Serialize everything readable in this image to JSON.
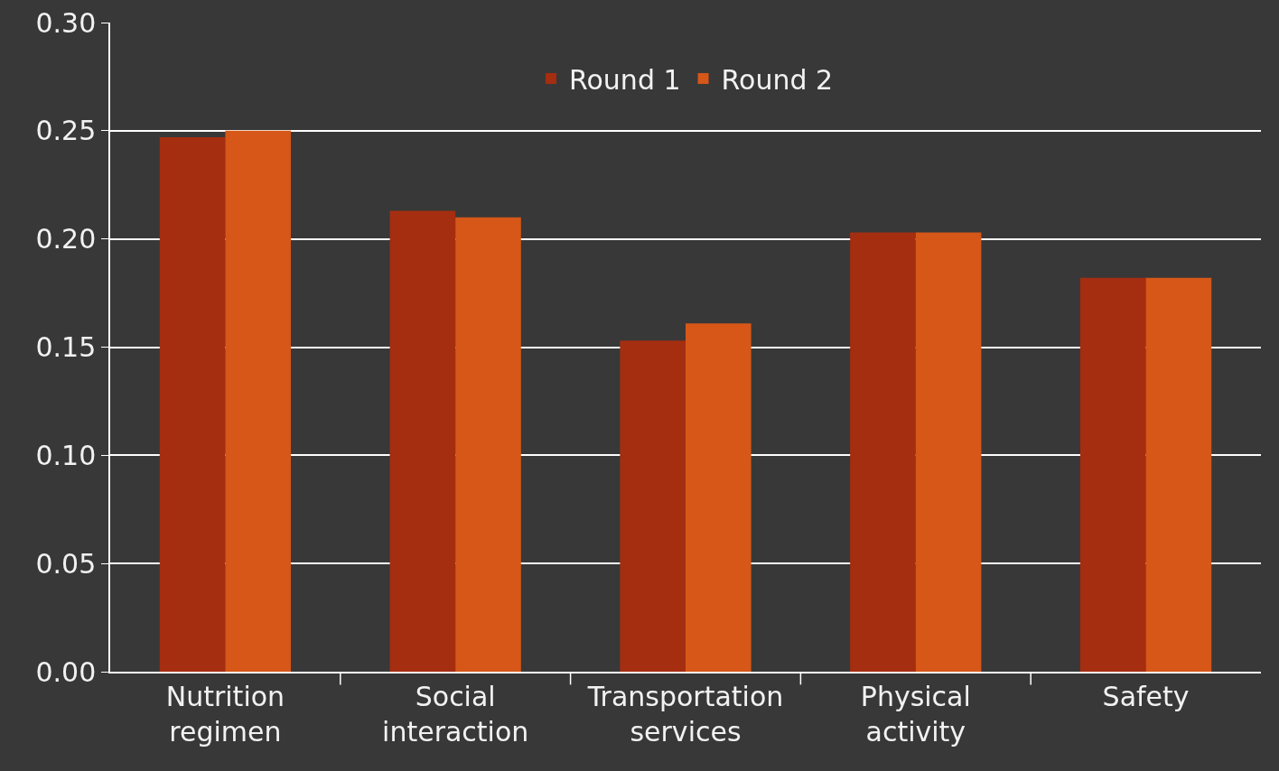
{
  "chart_data": {
    "type": "bar",
    "categories": [
      "Nutrition regimen",
      "Social interaction",
      "Transportation services",
      "Physical activity",
      "Safety"
    ],
    "series": [
      {
        "name": "Round 1",
        "color": "#a52e10",
        "values": [
          0.247,
          0.213,
          0.153,
          0.203,
          0.182
        ]
      },
      {
        "name": "Round 2",
        "color": "#d65718",
        "values": [
          0.25,
          0.21,
          0.161,
          0.203,
          0.182
        ]
      }
    ],
    "ylim": [
      0,
      0.3
    ],
    "yticks": [
      {
        "value": 0,
        "label": "0.00"
      },
      {
        "value": 0.05,
        "label": "0.05"
      },
      {
        "value": 0.1,
        "label": "0.10"
      },
      {
        "value": 0.15,
        "label": "0.15"
      },
      {
        "value": 0.2,
        "label": "0.20"
      },
      {
        "value": 0.25,
        "label": "0.25"
      },
      {
        "value": 0.3,
        "label": "0.30"
      }
    ],
    "grid": "y",
    "legend": "top"
  }
}
